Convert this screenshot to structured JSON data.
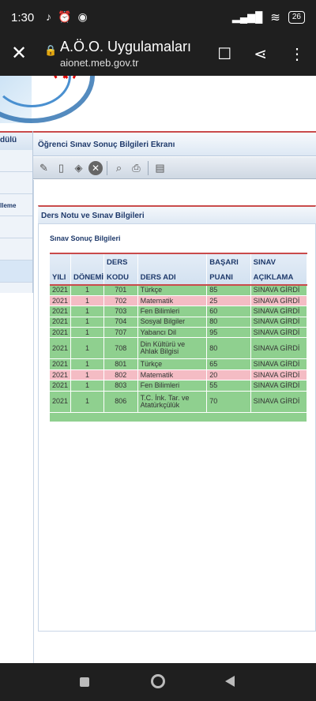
{
  "status_bar": {
    "time": "1:30",
    "battery": "26"
  },
  "browser": {
    "title": "A.Ö.O. Uygulamaları",
    "url": "aionet.meb.gov.tr"
  },
  "sidebar": {
    "heading": "dülü",
    "items": [
      {
        "label": ""
      },
      {
        "label": ""
      },
      {
        "label": "lleme"
      },
      {
        "label": ""
      },
      {
        "label": ""
      },
      {
        "label": ""
      }
    ]
  },
  "main": {
    "title": "Öğrenci Sınav Sonuç Bilgileri Ekranı",
    "section_title": "Ders Notu ve Sınav Bilgileri",
    "subtitle": "Sınav Sonuç Bilgileri"
  },
  "table": {
    "headers": {
      "yili": "YILI",
      "donemi": "DÖNEMİ",
      "ders_kodu_top": "DERS",
      "ders_kodu_bottom": "KODU",
      "ders_adi": "DERS ADI",
      "basari_top": "BAŞARI",
      "basari_bottom": "PUANI",
      "sinav_top": "SINAV",
      "sinav_bottom": "AÇIKLAMA"
    },
    "rows": [
      {
        "yil": "2021",
        "donem": "1",
        "kod": "701",
        "ad": "Türkçe",
        "puan": "85",
        "aciklama": "SINAVA GİRDİ",
        "status": "pass"
      },
      {
        "yil": "2021",
        "donem": "1",
        "kod": "702",
        "ad": "Matematik",
        "puan": "25",
        "aciklama": "SINAVA GİRDİ",
        "status": "fail"
      },
      {
        "yil": "2021",
        "donem": "1",
        "kod": "703",
        "ad": "Fen Bilimleri",
        "puan": "60",
        "aciklama": "SINAVA GİRDİ",
        "status": "pass"
      },
      {
        "yil": "2021",
        "donem": "1",
        "kod": "704",
        "ad": "Sosyal Bilgiler",
        "puan": "80",
        "aciklama": "SINAVA GİRDİ",
        "status": "pass"
      },
      {
        "yil": "2021",
        "donem": "1",
        "kod": "707",
        "ad": "Yabancı Dil",
        "puan": "95",
        "aciklama": "SINAVA GİRDİ",
        "status": "pass"
      },
      {
        "yil": "2021",
        "donem": "1",
        "kod": "708",
        "ad": "Din Kültürü ve Ahlak Bilgisi",
        "puan": "80",
        "aciklama": "SINAVA GİRDİ",
        "status": "pass"
      },
      {
        "yil": "2021",
        "donem": "1",
        "kod": "801",
        "ad": "Türkçe",
        "puan": "65",
        "aciklama": "SINAVA GİRDİ",
        "status": "pass"
      },
      {
        "yil": "2021",
        "donem": "1",
        "kod": "802",
        "ad": "Matematik",
        "puan": "20",
        "aciklama": "SINAVA GİRDİ",
        "status": "fail"
      },
      {
        "yil": "2021",
        "donem": "1",
        "kod": "803",
        "ad": "Fen Bilimleri",
        "puan": "55",
        "aciklama": "SINAVA GİRDİ",
        "status": "pass"
      },
      {
        "yil": "2021",
        "donem": "1",
        "kod": "806",
        "ad": "T.C. İnk. Tar. ve Atatürkçülük",
        "puan": "70",
        "aciklama": "SINAVA GİRDİ",
        "status": "pass"
      }
    ]
  },
  "colors": {
    "pass_row": "#8fd08f",
    "fail_row": "#f4bcc4",
    "accent_red": "#c94b4b",
    "header_text": "#1f3a6b"
  },
  "icons": [
    "edit-icon",
    "copy-icon",
    "erase-icon",
    "cancel-icon",
    "search-icon",
    "print-icon",
    "export-icon"
  ]
}
